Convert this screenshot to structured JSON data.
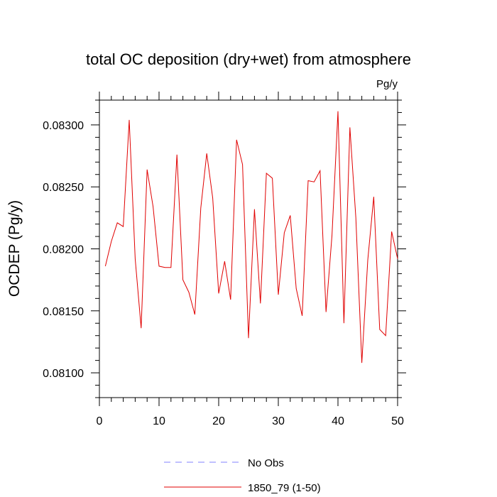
{
  "chart_data": {
    "type": "line",
    "title": "total OC deposition (dry+wet) from atmosphere",
    "units": "Pg/y",
    "ylabel": "OCDEP  (Pg/y)",
    "xlabel": "",
    "xlim": [
      0,
      50
    ],
    "ylim": [
      0.0808,
      0.0832
    ],
    "x_ticks": [
      0,
      10,
      20,
      30,
      40,
      50
    ],
    "y_ticks": [
      0.081,
      0.0815,
      0.082,
      0.0825,
      0.083
    ],
    "y_tick_labels": [
      "0.08100",
      "0.08150",
      "0.08200",
      "0.08250",
      "0.08300"
    ],
    "legend": [
      {
        "name": "No Obs",
        "color": "#8080ff",
        "style": "dashed"
      },
      {
        "name": "1850_79 (1-50)",
        "color": "#e00000",
        "style": "solid"
      }
    ],
    "series": [
      {
        "name": "1850_79 (1-50)",
        "color": "#e00000",
        "x": [
          1,
          2,
          3,
          4,
          5,
          6,
          7,
          8,
          9,
          10,
          11,
          12,
          13,
          14,
          15,
          16,
          17,
          18,
          19,
          20,
          21,
          22,
          23,
          24,
          25,
          26,
          27,
          28,
          29,
          30,
          31,
          32,
          33,
          34,
          35,
          36,
          37,
          38,
          39,
          40,
          41,
          42,
          43,
          44,
          45,
          46,
          47,
          48,
          49,
          50
        ],
        "values": [
          0.08186,
          0.08206,
          0.08221,
          0.08218,
          0.08304,
          0.08192,
          0.08136,
          0.08264,
          0.08234,
          0.08186,
          0.08185,
          0.08185,
          0.08276,
          0.08175,
          0.08165,
          0.08147,
          0.08233,
          0.08277,
          0.08241,
          0.08164,
          0.0819,
          0.08159,
          0.08288,
          0.08268,
          0.08128,
          0.08232,
          0.08156,
          0.08261,
          0.08257,
          0.08163,
          0.08213,
          0.08227,
          0.08168,
          0.08146,
          0.08255,
          0.08254,
          0.08263,
          0.08149,
          0.08211,
          0.08311,
          0.0814,
          0.08298,
          0.08225,
          0.08108,
          0.08191,
          0.08242,
          0.08135,
          0.0813,
          0.08214,
          0.08192
        ]
      }
    ]
  }
}
